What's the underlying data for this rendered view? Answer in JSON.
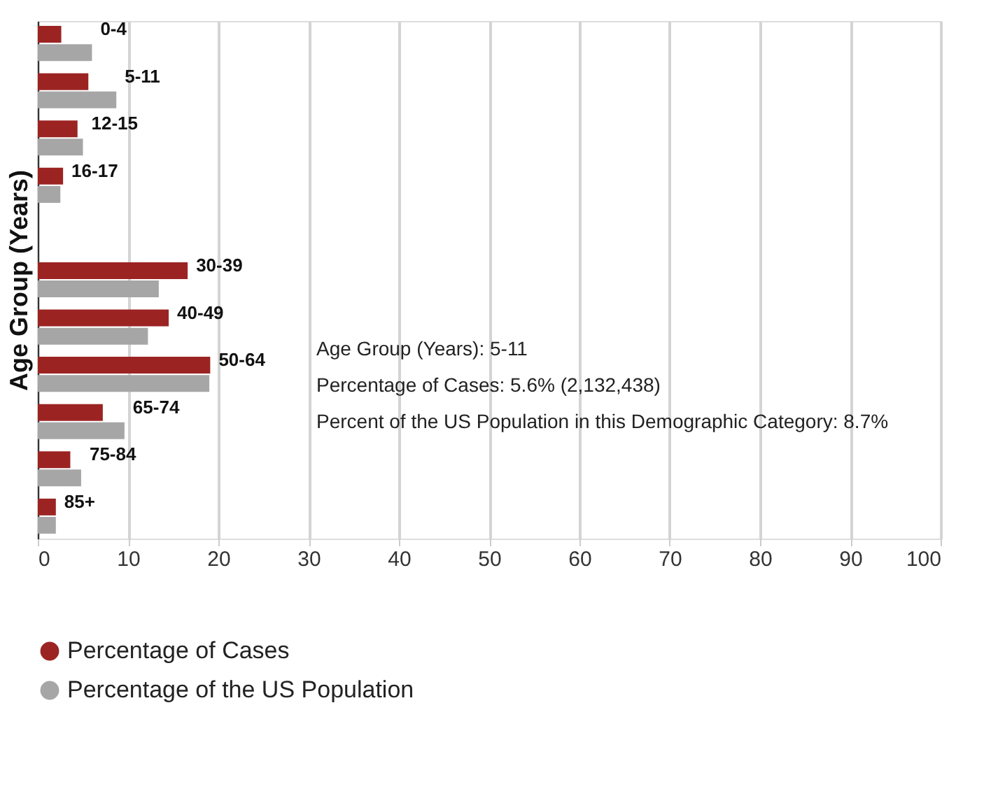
{
  "chart_data": {
    "type": "bar",
    "orientation": "horizontal",
    "ylabel": "Age Group (Years)",
    "categories": [
      "0-4",
      "5-11",
      "12-15",
      "16-17",
      null,
      "30-39",
      "40-49",
      "50-64",
      "65-74",
      "75-84",
      "85+"
    ],
    "series": [
      {
        "name": "Percentage of Cases",
        "color": "#9b2423",
        "values": [
          2.6,
          5.6,
          4.4,
          2.8,
          null,
          16.6,
          14.5,
          19.1,
          7.2,
          3.6,
          2.0
        ]
      },
      {
        "name": "Percentage of the US Population",
        "color": "#a6a6a6",
        "values": [
          6.0,
          8.7,
          5.0,
          2.5,
          null,
          13.4,
          12.2,
          19.0,
          9.6,
          4.8,
          2.0
        ]
      }
    ],
    "xlim": [
      0,
      100
    ],
    "xticks": [
      0,
      10,
      20,
      30,
      40,
      50,
      60,
      70,
      80,
      90,
      100
    ],
    "grid": "x",
    "legend": "bottom",
    "annotations": [
      "Age Group (Years): 5-11",
      "Percentage of Cases: 5.6% (2,132,438)",
      "Percent of the US Population in this Demographic Category: 8.7%"
    ]
  }
}
